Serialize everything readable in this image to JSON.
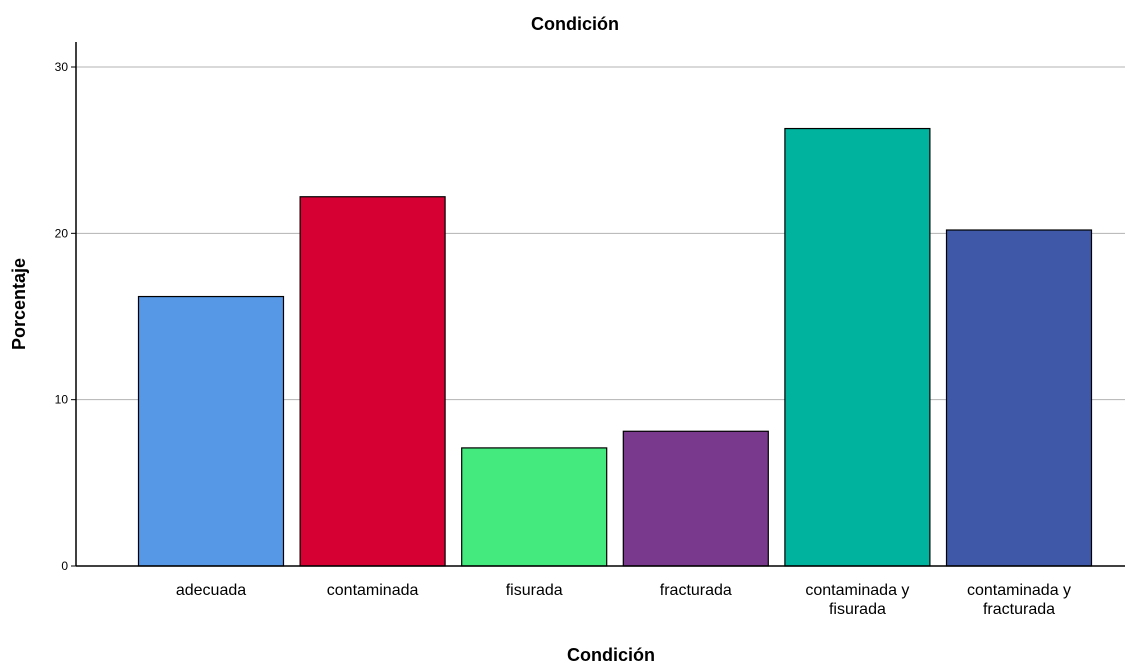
{
  "chart_data": {
    "type": "bar",
    "title": "Condición",
    "xlabel": "Condición",
    "ylabel": "Porcentaje",
    "categories": [
      [
        "adecuada"
      ],
      [
        "contaminada"
      ],
      [
        "fisurada"
      ],
      [
        "fracturada"
      ],
      [
        "contaminada y",
        "fisurada"
      ],
      [
        "contaminada y",
        "fracturada"
      ]
    ],
    "values": [
      16.2,
      22.2,
      7.1,
      8.1,
      26.3,
      20.2
    ],
    "colors": [
      "#5697e6",
      "#d60032",
      "#45ea7e",
      "#793a8e",
      "#00b39f",
      "#3f59a8"
    ],
    "ylim": [
      0,
      30
    ],
    "yticks": [
      0,
      10,
      20,
      30
    ],
    "grid": true,
    "legend": "none"
  }
}
